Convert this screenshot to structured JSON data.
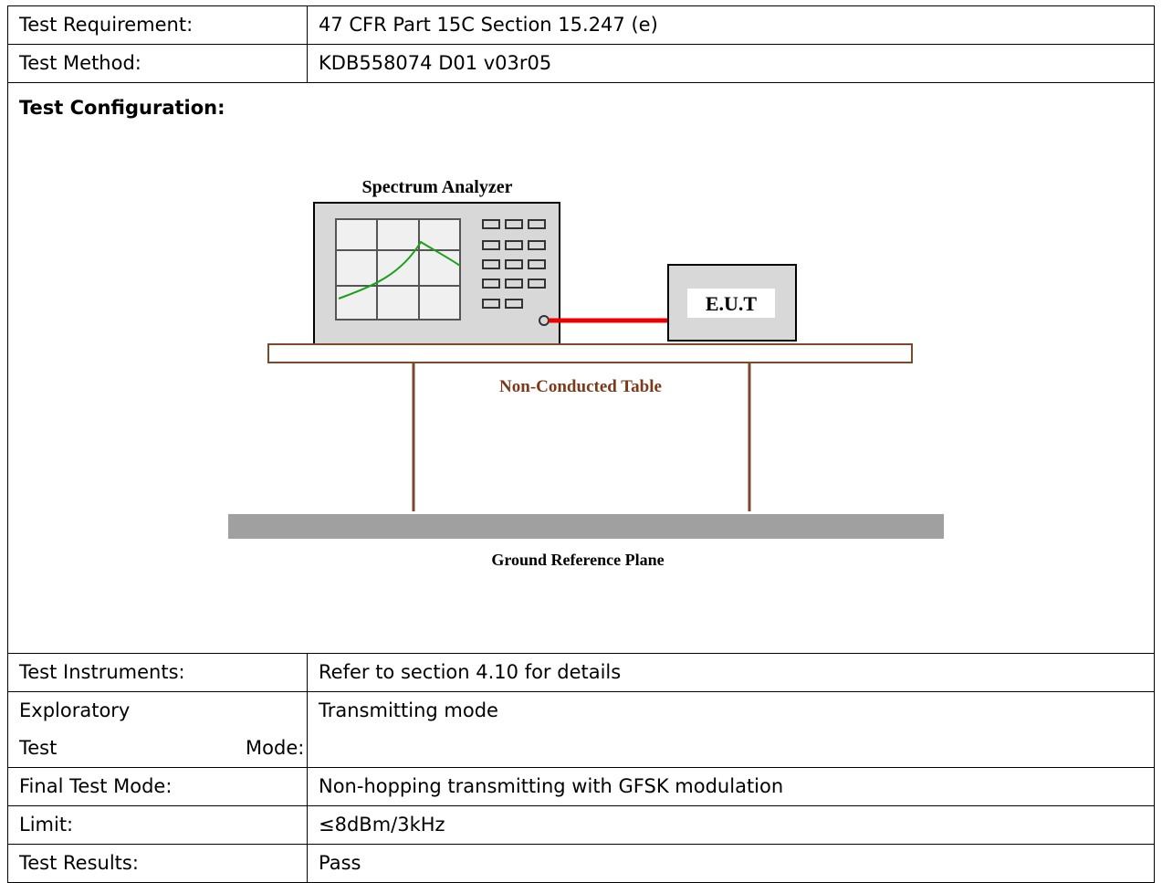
{
  "rows_top": [
    {
      "label": "Test Requirement:",
      "value": "47 CFR Part 15C Section 15.247 (e)"
    },
    {
      "label": "Test Method:",
      "value": "KDB558074 D01 v03r05"
    }
  ],
  "configuration": {
    "label": "Test Configuration:",
    "diagram": {
      "analyzer": "Spectrum Analyzer",
      "eut": "E.U.T",
      "table": "Non-Conducted Table",
      "ground": "Ground Reference Plane"
    }
  },
  "rows_bottom": [
    {
      "label": "Test Instruments:",
      "value": "Refer to section 4.10 for details"
    },
    {
      "label": "Exploratory Test Mode:",
      "value": "Transmitting mode"
    },
    {
      "label": "Final Test Mode:",
      "value": "Non-hopping transmitting with GFSK modulation"
    },
    {
      "label": "Limit:",
      "value": "≤8dBm/3kHz"
    },
    {
      "label": "Test Results:",
      "value": "Pass"
    }
  ]
}
